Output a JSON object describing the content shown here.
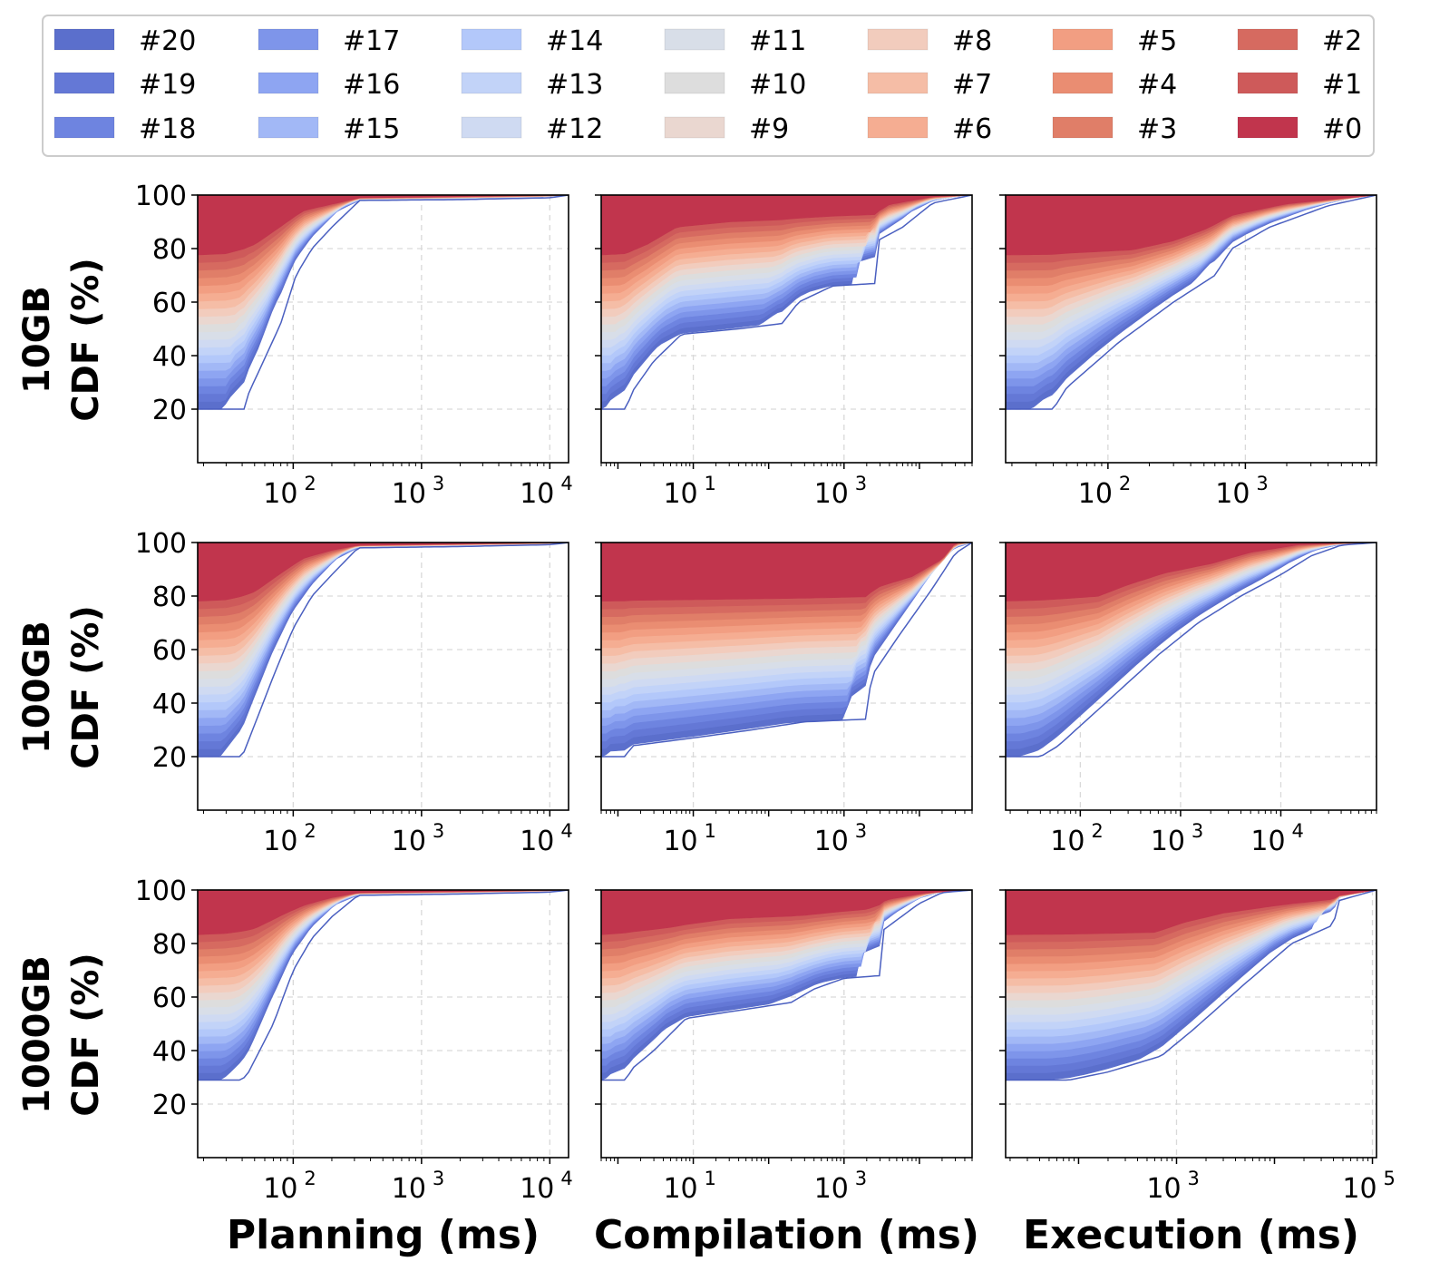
{
  "legend": {
    "series": [
      "#20",
      "#19",
      "#18",
      "#17",
      "#16",
      "#15",
      "#14",
      "#13",
      "#12",
      "#11",
      "#10",
      "#9",
      "#8",
      "#7",
      "#6",
      "#5",
      "#4",
      "#3",
      "#2",
      "#1",
      "#0"
    ],
    "colors": [
      "#5b6fcc",
      "#6478d6",
      "#6e84e0",
      "#7e95ea",
      "#8ea5f2",
      "#a2b8f6",
      "#b3c8fa",
      "#c2d3f8",
      "#cfdaf2",
      "#d8dee8",
      "#dddddd",
      "#ead7d0",
      "#f2ccbd",
      "#f5bda6",
      "#f5ad92",
      "#f29e82",
      "#ea8d72",
      "#e07e68",
      "#d66a60",
      "#ce5a5a",
      "#c1354d"
    ]
  },
  "rows": [
    "10GB\nCDF (%)",
    "100GB\nCDF (%)",
    "1000GB\nCDF (%)"
  ],
  "columns": [
    "Planning (ms)",
    "Compilation (ms)",
    "Execution (ms)"
  ],
  "chart_data": [
    {
      "type": "area",
      "row": "10GB",
      "col": "Planning (ms)",
      "xscale": "log",
      "xlim": [
        18,
        14000
      ],
      "ylim": [
        0,
        100
      ],
      "yticks": [
        20,
        40,
        60,
        80,
        100
      ],
      "xticks": [
        2,
        3,
        4
      ],
      "base": [
        20,
        20,
        20,
        20,
        20
      ],
      "top": [
        80.5,
        96,
        99,
        99.5,
        100
      ],
      "lower": [
        [
          18,
          20
        ],
        [
          43,
          20
        ],
        [
          45,
          26
        ],
        [
          80,
          52
        ],
        [
          105,
          70
        ],
        [
          140,
          80
        ],
        [
          200,
          88
        ],
        [
          330,
          98
        ],
        [
          2000,
          98.3
        ],
        [
          10000,
          99
        ],
        [
          14000,
          100
        ]
      ],
      "upper": [
        [
          18,
          80.5
        ],
        [
          30,
          81
        ],
        [
          50,
          84
        ],
        [
          80,
          90
        ],
        [
          120,
          95
        ],
        [
          200,
          97
        ],
        [
          330,
          99
        ],
        [
          14000,
          100
        ]
      ]
    },
    {
      "type": "area",
      "row": "10GB",
      "col": "Compilation (ms)",
      "xscale": "log",
      "xlim": [
        0.6,
        50000
      ],
      "ylim": [
        0,
        100
      ],
      "yticks": [
        20,
        40,
        60,
        80,
        100
      ],
      "xticks": [
        1,
        3
      ],
      "lower": [
        [
          0.6,
          20
        ],
        [
          1.3,
          20
        ],
        [
          1.5,
          26
        ],
        [
          3,
          38
        ],
        [
          7,
          48
        ],
        [
          40,
          50
        ],
        [
          150,
          52
        ],
        [
          250,
          60
        ],
        [
          700,
          66
        ],
        [
          2700,
          67
        ],
        [
          2800,
          83
        ],
        [
          6000,
          88
        ],
        [
          15000,
          97
        ],
        [
          50000,
          100
        ]
      ],
      "upper": [
        [
          0.6,
          80.5
        ],
        [
          1.3,
          81
        ],
        [
          2.5,
          84
        ],
        [
          6,
          90
        ],
        [
          30,
          92
        ],
        [
          300,
          93
        ],
        [
          2700,
          94
        ],
        [
          4000,
          97
        ],
        [
          15000,
          99.5
        ],
        [
          50000,
          100
        ]
      ]
    },
    {
      "type": "area",
      "row": "10GB",
      "col": "Execution (ms)",
      "xscale": "log",
      "xlim": [
        18,
        9000
      ],
      "ylim": [
        0,
        100
      ],
      "yticks": [
        20,
        40,
        60,
        80,
        100
      ],
      "xticks": [
        2,
        3
      ],
      "lower": [
        [
          18,
          20
        ],
        [
          40,
          20
        ],
        [
          50,
          28
        ],
        [
          120,
          45
        ],
        [
          300,
          60
        ],
        [
          600,
          70
        ],
        [
          800,
          80
        ],
        [
          1500,
          88
        ],
        [
          4000,
          96
        ],
        [
          9000,
          100
        ]
      ],
      "upper": [
        [
          18,
          80.5
        ],
        [
          150,
          81
        ],
        [
          300,
          84
        ],
        [
          500,
          88
        ],
        [
          800,
          93
        ],
        [
          2000,
          97
        ],
        [
          9000,
          100
        ]
      ]
    },
    {
      "type": "area",
      "row": "100GB",
      "col": "Planning (ms)",
      "xscale": "log",
      "xlim": [
        18,
        14000
      ],
      "ylim": [
        0,
        100
      ],
      "yticks": [
        20,
        40,
        60,
        80,
        100
      ],
      "xticks": [
        2,
        3,
        4
      ],
      "lower": [
        [
          18,
          20
        ],
        [
          40,
          20
        ],
        [
          44,
          25
        ],
        [
          70,
          50
        ],
        [
          100,
          68
        ],
        [
          140,
          80
        ],
        [
          200,
          88
        ],
        [
          320,
          98
        ],
        [
          2000,
          98.5
        ],
        [
          10000,
          99.2
        ],
        [
          14000,
          100
        ]
      ],
      "upper": [
        [
          18,
          81
        ],
        [
          30,
          81.5
        ],
        [
          50,
          84
        ],
        [
          80,
          90
        ],
        [
          120,
          95
        ],
        [
          200,
          97.5
        ],
        [
          320,
          99
        ],
        [
          14000,
          100
        ]
      ]
    },
    {
      "type": "area",
      "row": "100GB",
      "col": "Compilation (ms)",
      "xscale": "log",
      "xlim": [
        0.6,
        50000
      ],
      "ylim": [
        0,
        100
      ],
      "yticks": [
        20,
        40,
        60,
        80,
        100
      ],
      "xticks": [
        1,
        3
      ],
      "lower": [
        [
          0.6,
          20
        ],
        [
          1.3,
          20
        ],
        [
          1.5,
          24
        ],
        [
          10,
          27
        ],
        [
          60,
          30
        ],
        [
          300,
          33
        ],
        [
          2000,
          34
        ],
        [
          2300,
          50
        ],
        [
          5000,
          64
        ],
        [
          15000,
          83
        ],
        [
          30000,
          96
        ],
        [
          50000,
          100
        ]
      ],
      "upper": [
        [
          0.6,
          81
        ],
        [
          300,
          81.5
        ],
        [
          2000,
          82
        ],
        [
          3000,
          85
        ],
        [
          8000,
          88
        ],
        [
          20000,
          94
        ],
        [
          30000,
          100
        ],
        [
          50000,
          100
        ]
      ]
    },
    {
      "type": "area",
      "row": "100GB",
      "col": "Execution (ms)",
      "xscale": "log",
      "xlim": [
        18,
        90000
      ],
      "ylim": [
        0,
        100
      ],
      "yticks": [
        20,
        40,
        60,
        80,
        100
      ],
      "xticks": [
        2,
        3,
        4
      ],
      "lower": [
        [
          18,
          20
        ],
        [
          40,
          20
        ],
        [
          60,
          24
        ],
        [
          250,
          45
        ],
        [
          600,
          58
        ],
        [
          1500,
          70
        ],
        [
          4000,
          80
        ],
        [
          10000,
          88
        ],
        [
          20000,
          95
        ],
        [
          40000,
          99
        ],
        [
          90000,
          100
        ]
      ],
      "upper": [
        [
          18,
          81
        ],
        [
          150,
          82
        ],
        [
          300,
          86
        ],
        [
          700,
          90
        ],
        [
          2000,
          93
        ],
        [
          5000,
          97
        ],
        [
          15000,
          99.5
        ],
        [
          90000,
          100
        ]
      ]
    },
    {
      "type": "area",
      "row": "1000GB",
      "col": "Planning (ms)",
      "xscale": "log",
      "xlim": [
        18,
        14000
      ],
      "ylim": [
        0,
        100
      ],
      "yticks": [
        20,
        40,
        60,
        80,
        100
      ],
      "xticks": [
        2,
        3,
        4
      ],
      "lower": [
        [
          18,
          29
        ],
        [
          40,
          29
        ],
        [
          45,
          32
        ],
        [
          70,
          50
        ],
        [
          100,
          70
        ],
        [
          140,
          82
        ],
        [
          200,
          90
        ],
        [
          320,
          98
        ],
        [
          2000,
          98.5
        ],
        [
          10000,
          99.2
        ],
        [
          14000,
          100
        ]
      ],
      "upper": [
        [
          18,
          86
        ],
        [
          30,
          86.5
        ],
        [
          50,
          88
        ],
        [
          80,
          92
        ],
        [
          120,
          95
        ],
        [
          200,
          97.5
        ],
        [
          320,
          99
        ],
        [
          14000,
          100
        ]
      ]
    },
    {
      "type": "area",
      "row": "1000GB",
      "col": "Compilation (ms)",
      "xscale": "log",
      "xlim": [
        0.6,
        50000
      ],
      "ylim": [
        0,
        100
      ],
      "yticks": [
        20,
        40,
        60,
        80,
        100
      ],
      "xticks": [
        1,
        3
      ],
      "lower": [
        [
          0.6,
          29
        ],
        [
          1.3,
          29
        ],
        [
          1.5,
          33
        ],
        [
          3,
          40
        ],
        [
          8,
          52
        ],
        [
          40,
          55
        ],
        [
          200,
          58
        ],
        [
          400,
          63
        ],
        [
          1000,
          67
        ],
        [
          3000,
          68
        ],
        [
          3300,
          85
        ],
        [
          10000,
          95
        ],
        [
          20000,
          99
        ],
        [
          50000,
          100
        ]
      ],
      "upper": [
        [
          0.6,
          86
        ],
        [
          5,
          88
        ],
        [
          30,
          91
        ],
        [
          300,
          92
        ],
        [
          2000,
          94
        ],
        [
          4000,
          97
        ],
        [
          12000,
          99
        ],
        [
          50000,
          100
        ]
      ]
    },
    {
      "type": "area",
      "row": "1000GB",
      "col": "Execution (ms)",
      "xscale": "log",
      "xlim": [
        18,
        110000
      ],
      "ylim": [
        0,
        100
      ],
      "yticks": [
        20,
        40,
        60,
        80,
        100
      ],
      "xticks": [
        3,
        5
      ],
      "lower": [
        [
          18,
          29
        ],
        [
          80,
          29
        ],
        [
          200,
          32
        ],
        [
          700,
          38
        ],
        [
          1500,
          48
        ],
        [
          5000,
          65
        ],
        [
          15000,
          80
        ],
        [
          40000,
          87
        ],
        [
          45000,
          96
        ],
        [
          110000,
          100
        ]
      ],
      "upper": [
        [
          18,
          86
        ],
        [
          600,
          86.5
        ],
        [
          1200,
          90
        ],
        [
          3000,
          93
        ],
        [
          10000,
          95
        ],
        [
          40000,
          97
        ],
        [
          45000,
          98
        ],
        [
          110000,
          100
        ]
      ]
    }
  ]
}
